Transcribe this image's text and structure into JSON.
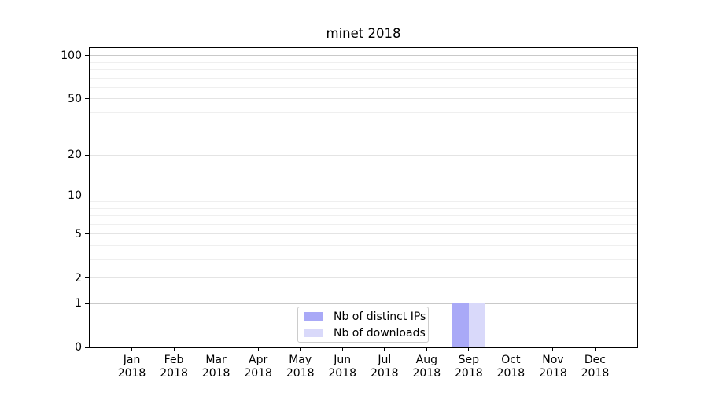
{
  "chart_data": {
    "type": "bar",
    "title": "minet 2018",
    "categories": [
      "Jan",
      "Feb",
      "Mar",
      "Apr",
      "May",
      "Jun",
      "Jul",
      "Aug",
      "Sep",
      "Oct",
      "Nov",
      "Dec"
    ],
    "category_year": "2018",
    "series": [
      {
        "name": "Nb of distinct IPs",
        "color": "#a9a9f7",
        "values": [
          0,
          0,
          0,
          0,
          0,
          0,
          0,
          0,
          1,
          0,
          0,
          0
        ]
      },
      {
        "name": "Nb of downloads",
        "color": "#d9d9fa",
        "values": [
          0,
          0,
          0,
          0,
          0,
          0,
          0,
          0,
          1,
          0,
          0,
          0
        ]
      }
    ],
    "yscale": "log1p",
    "yticks": [
      0,
      1,
      2,
      5,
      10,
      20,
      50,
      100
    ],
    "yminorticks": [
      3,
      4,
      6,
      7,
      8,
      9,
      30,
      40,
      60,
      70,
      80,
      90
    ],
    "ydecadeticks": [
      1,
      10,
      100
    ],
    "ylim": [
      0,
      113
    ],
    "xlabel": "",
    "ylabel": "",
    "grid": true,
    "legend_position": "lower center",
    "bar_group_width": 0.8,
    "colors": {
      "grid_major": "#c9c9c9",
      "grid_mid": "#e4e4e4",
      "grid_minor": "#efefef",
      "frame": "#000000",
      "text": "#000000",
      "background": "#ffffff"
    }
  }
}
